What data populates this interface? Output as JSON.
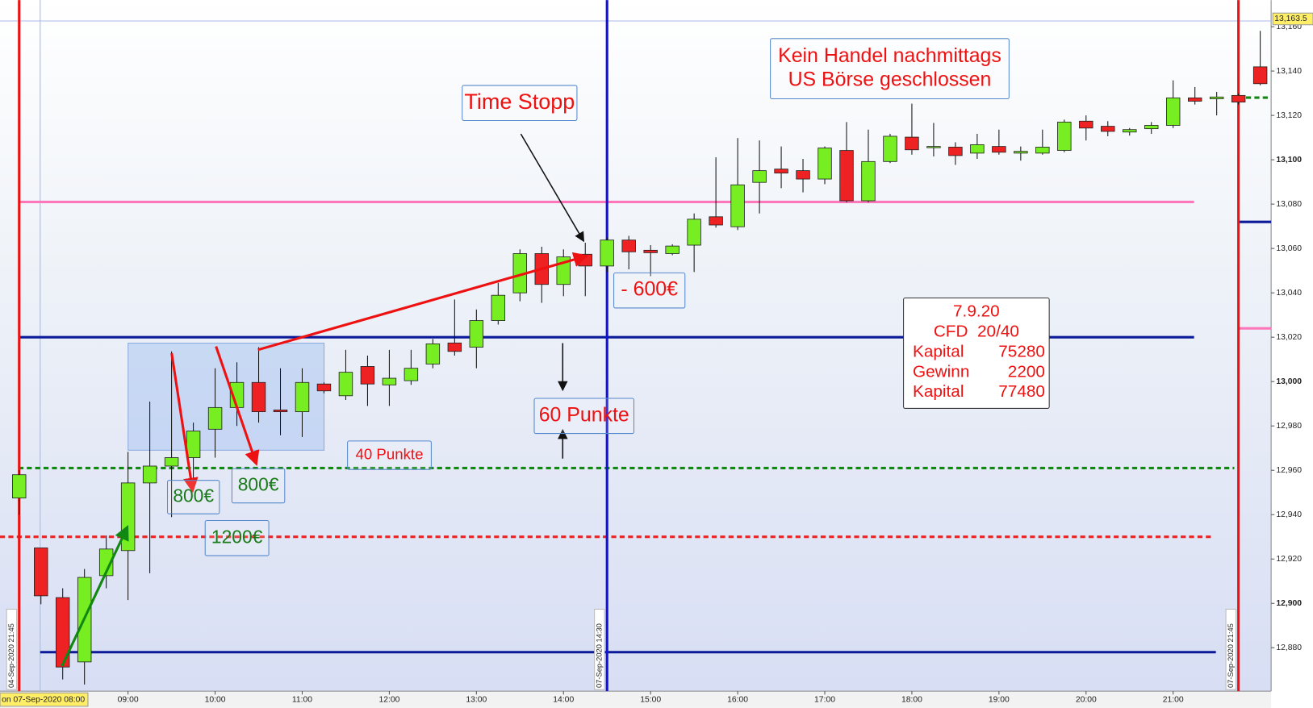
{
  "chart_data": {
    "type": "candlestick",
    "x": [
      7.75,
      8,
      8.25,
      8.5,
      8.75,
      9,
      9.25,
      9.5,
      9.75,
      10,
      10.25,
      10.5,
      10.75,
      11,
      11.25,
      11.5,
      11.75,
      12,
      12.25,
      12.5,
      12.75,
      13,
      13.25,
      13.5,
      13.75,
      14,
      14.25,
      14.5,
      14.75,
      15,
      15.25,
      15.5,
      15.75,
      16,
      16.25,
      16.5,
      16.75,
      17,
      17.25,
      17.5,
      17.75,
      18,
      18.25,
      18.5,
      18.75,
      19,
      19.25,
      19.5,
      19.75,
      20,
      20.25,
      20.5,
      20.75,
      21,
      21.25,
      21.5,
      21.75,
      22
    ],
    "open": [
      12947.5,
      12925,
      12902.6,
      12873.6,
      12912.5,
      12923.8,
      12954.3,
      12961.9,
      12965.7,
      12978.5,
      12988.3,
      12999.6,
      12987.2,
      12986.4,
      12998.9,
      12993.6,
      13006.8,
      12998.5,
      13000.4,
      13007.9,
      13017.4,
      13015.5,
      13027.5,
      13040,
      13057.7,
      13043.8,
      13057.4,
      13052.1,
      13063.8,
      13059.2,
      13057.7,
      13061.5,
      13074.3,
      13069.8,
      13089.8,
      13095.8,
      13095.1,
      13091.3,
      13104.2,
      13081.5,
      13099.2,
      13110.2,
      13105.7,
      13105.7,
      13103,
      13106,
      13103,
      13103,
      13104.2,
      13117.4,
      13115.1,
      13112.5,
      13114,
      13115.5,
      13127.9,
      13127.5,
      13129,
      13141.9
    ],
    "high": [
      12960,
      12925,
      12906.8,
      12915.5,
      12930.6,
      12968.3,
      12991,
      13013.6,
      12981.5,
      13006,
      13008.7,
      13015.5,
      13006,
      13006,
      12999.6,
      13014.3,
      13011.7,
      13014.3,
      13014.3,
      13019.2,
      13037,
      13032.5,
      13044.5,
      13059.6,
      13060.8,
      13059.6,
      13062.6,
      13064.9,
      13065.7,
      13061.5,
      13061.9,
      13075.8,
      13101.1,
      13109.8,
      13108.7,
      13106,
      13100.4,
      13106,
      13117,
      13113.6,
      13111.7,
      13125.3,
      13116.6,
      13107.9,
      13111.7,
      13113.6,
      13106,
      13113.6,
      13118.1,
      13120,
      13117.4,
      13114.3,
      13117,
      13135.8,
      13132.8,
      13130.6,
      13129.8,
      13158.1
    ],
    "low": [
      12940,
      12899.6,
      12865.7,
      12863.4,
      12906.8,
      12901.5,
      12913.6,
      12938.9,
      12954.3,
      12965.7,
      12980,
      12981.5,
      12975.8,
      12975,
      12994.7,
      12991.7,
      12989,
      12989,
      12998.5,
      13006,
      13011.7,
      13006,
      13025.7,
      13036.2,
      13035.5,
      13038.5,
      13038.5,
      13049.4,
      13050.6,
      13047.5,
      13057,
      13049.4,
      13069.4,
      13068.3,
      13075.8,
      13087.2,
      13085.3,
      13089,
      13080.8,
      13080.8,
      13098.5,
      13102.3,
      13101.5,
      13097.7,
      13100.4,
      13102.3,
      13099.6,
      13102.3,
      13103.4,
      13108.7,
      13110.6,
      13110.9,
      13111.7,
      13114.3,
      13124.9,
      13120,
      13124.9,
      13133.6
    ],
    "close": [
      12958,
      12903.4,
      12871.3,
      12911.7,
      12924.5,
      12954.3,
      12961.9,
      12965.7,
      12977.7,
      12988.3,
      12999.6,
      12986.4,
      12986.4,
      12999.6,
      12995.8,
      13004.2,
      12998.9,
      13001.5,
      13006,
      13017,
      13013.6,
      13027.5,
      13038.9,
      13057.7,
      13043.8,
      13056.2,
      13052.1,
      13063.8,
      13058.5,
      13058.1,
      13061.1,
      13073.2,
      13070.6,
      13088.7,
      13095.1,
      13094,
      13091.3,
      13105.3,
      13081.5,
      13099.2,
      13110.6,
      13104.5,
      13106,
      13101.9,
      13106.8,
      13103.4,
      13103.8,
      13105.7,
      13117,
      13114.3,
      13112.8,
      13113.6,
      13115.5,
      13127.9,
      13126.4,
      13128.3,
      13126,
      13134.3
    ],
    "up_color": "#77ee22",
    "down_color": "#ee2222",
    "xlim": [
      7.53,
      22.125
    ],
    "ylim": [
      12860.4,
      13172
    ],
    "xticks": [
      {
        "value": 9,
        "label": "09:00"
      },
      {
        "value": 10,
        "label": "10:00"
      },
      {
        "value": 11,
        "label": "11:00"
      },
      {
        "value": 12,
        "label": "12:00"
      },
      {
        "value": 13,
        "label": "13:00"
      },
      {
        "value": 14,
        "label": "14:00"
      },
      {
        "value": 15,
        "label": "15:00"
      },
      {
        "value": 16,
        "label": "16:00"
      },
      {
        "value": 17,
        "label": "17:00"
      },
      {
        "value": 18,
        "label": "18:00"
      },
      {
        "value": 19,
        "label": "19:00"
      },
      {
        "value": 20,
        "label": "20:00"
      },
      {
        "value": 21,
        "label": "21:00"
      }
    ],
    "yticks": [
      {
        "value": 12880,
        "label": "12,880"
      },
      {
        "value": 12900,
        "label": "12,900"
      },
      {
        "value": 12920,
        "label": "12,920"
      },
      {
        "value": 12940,
        "label": "12,940"
      },
      {
        "value": 12960,
        "label": "12,960"
      },
      {
        "value": 12980,
        "label": "12,980"
      },
      {
        "value": 13000,
        "label": "13,000"
      },
      {
        "value": 13020,
        "label": "13,020"
      },
      {
        "value": 13040,
        "label": "13,040"
      },
      {
        "value": 13060,
        "label": "13,060"
      },
      {
        "value": 13080,
        "label": "13,080"
      },
      {
        "value": 13100,
        "label": "13,100"
      },
      {
        "value": 13120,
        "label": "13,120"
      },
      {
        "value": 13140,
        "label": "13,140"
      },
      {
        "value": 13160,
        "label": "13,160"
      }
    ],
    "last_price": {
      "value": 13163.5,
      "label": "13,163.5"
    },
    "session_label": "on 07-Sep-2020 08:00",
    "levels": [
      {
        "value": 13081,
        "color": "#ff77bb",
        "dashed": false
      },
      {
        "value": 13020,
        "color": "#0a1a99",
        "dashed": false
      },
      {
        "value": 12878,
        "color": "#0a1a99",
        "dashed": false
      },
      {
        "value": 12961,
        "color": "#118811",
        "dashed": true
      },
      {
        "value": 12930,
        "color": "#ee2222",
        "dashed": true
      },
      {
        "value": 13072,
        "color": "#0a1a99",
        "dashed": false
      },
      {
        "value": 13024,
        "color": "#ff77bb",
        "dashed": false
      },
      {
        "value": 13128,
        "color": "#118811",
        "dashed": true
      }
    ],
    "markers": [
      {
        "x": 7.75,
        "label": "04-Sep-2020 21:45",
        "color": "#ee1111"
      },
      {
        "x": 14.5,
        "label": "07-Sep-2020 14:30",
        "color": "#1111dd"
      },
      {
        "x": 21.75,
        "label": "07-Sep-2020 21:45",
        "color": "#ee1111"
      }
    ],
    "annotations": [
      {
        "lines": [
          "Time Stopp"
        ],
        "color": "#ee1111"
      },
      {
        "lines": [
          "Kein Handel nachmittags",
          "US Börse geschlossen"
        ],
        "color": "#ee1111"
      },
      {
        "lines": [
          "- 600€"
        ],
        "color": "#ee1111"
      },
      {
        "lines": [
          "60 Punkte"
        ],
        "color": "#ee1111"
      },
      {
        "lines": [
          "40 Punkte"
        ],
        "color": "#ee1111"
      },
      {
        "lines": [
          "800€"
        ],
        "color": "#1a7a1a"
      },
      {
        "lines": [
          "800€"
        ],
        "color": "#1a7a1a"
      },
      {
        "lines": [
          "1200€"
        ],
        "color": "#1a7a1a"
      }
    ],
    "info_box": {
      "color": "#ee1111",
      "rows": [
        [
          "7.9.20"
        ],
        [
          "CFD  20/40"
        ],
        [
          "Kapital",
          "75280"
        ],
        [
          "Gewinn",
          "2200"
        ],
        [
          "Kapital",
          "77480"
        ]
      ]
    }
  }
}
